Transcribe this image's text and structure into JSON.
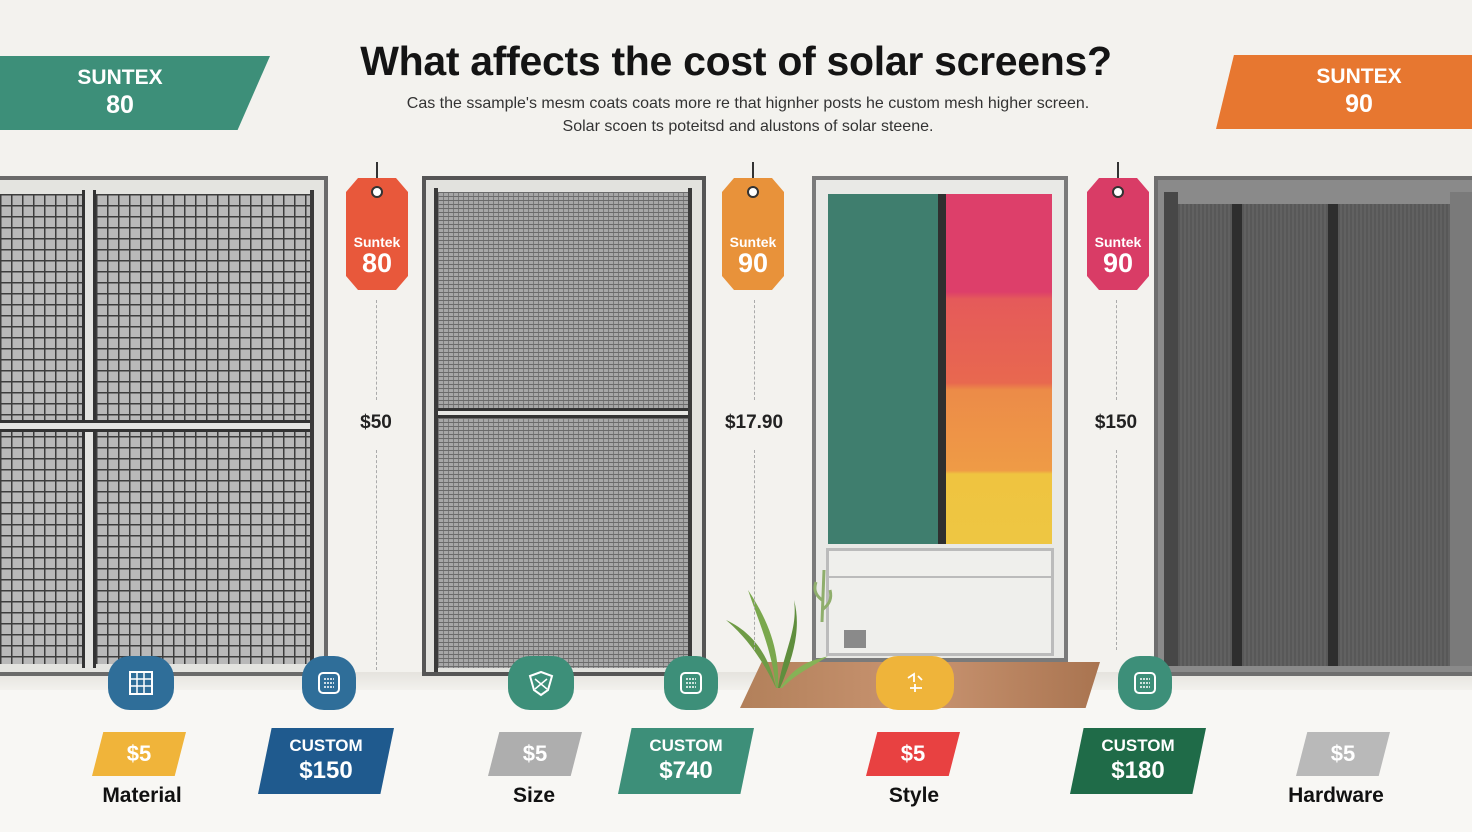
{
  "title": "What affects the cost of solar screens?",
  "subtitle": {
    "line1": "Cas the ssample's mesm coats coats more re that hignher posts he custom mesh higher screen.",
    "line2": "Solar scoen ts poteitsd and alustons of solar steene."
  },
  "corner_banners": [
    {
      "line1": "SUNTEX",
      "line2": "80",
      "color": "#3d8f79"
    },
    {
      "line1": "SUNTEX",
      "line2": "90",
      "color": "#e77730"
    }
  ],
  "price_tags": [
    {
      "line1": "Suntek",
      "line2": "80",
      "color": "#e8583b"
    },
    {
      "line1": "Suntek",
      "line2": "90",
      "color": "#e8923a"
    },
    {
      "line1": "Suntek",
      "line2": "90",
      "color": "#d93c66"
    }
  ],
  "mid_prices": [
    "$50",
    "$17.90",
    "$150"
  ],
  "icons": [
    "mesh-grid-icon",
    "mesh-roll-icon",
    "shield-icon",
    "mesh-roll-icon",
    "palette-icon",
    "mesh-roll-icon"
  ],
  "costs": [
    {
      "type": "small",
      "value": "$5",
      "color": "#f0b43a"
    },
    {
      "type": "big",
      "line1": "CUSTOM",
      "line2": "$150",
      "color": "#1f5a8e"
    },
    {
      "type": "small",
      "value": "$5",
      "color": "#aeaeae"
    },
    {
      "type": "big",
      "line1": "CUSTOM",
      "line2": "$740",
      "color": "#3d8f79"
    },
    {
      "type": "small",
      "value": "$5",
      "color": "#e84141"
    },
    {
      "type": "big",
      "line1": "CUSTOM",
      "line2": "$180",
      "color": "#1f6b48"
    },
    {
      "type": "small",
      "value": "$5",
      "color": "#b9b9b9"
    }
  ],
  "categories": [
    "Material",
    "Size",
    "Style",
    "Hardware"
  ]
}
